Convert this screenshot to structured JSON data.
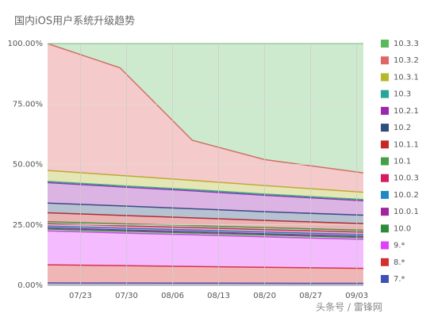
{
  "chart_data": {
    "type": "stacked_area",
    "title": "国内iOS用户系统升级趋势",
    "watermark": "头条号 / 雷锋网",
    "x": [
      199,
      210,
      221,
      232,
      247
    ],
    "xlim": [
      199,
      247
    ],
    "xticks": [
      {
        "value": 204,
        "label": "07/23"
      },
      {
        "value": 211,
        "label": "07/30"
      },
      {
        "value": 218,
        "label": "08/06"
      },
      {
        "value": 225,
        "label": "08/13"
      },
      {
        "value": 232,
        "label": "08/20"
      },
      {
        "value": 239,
        "label": "08/27"
      },
      {
        "value": 246,
        "label": "09/03"
      }
    ],
    "ylim": [
      0,
      100
    ],
    "yticks": [
      {
        "value": 0,
        "label": "0.00%"
      },
      {
        "value": 25,
        "label": "25.00%"
      },
      {
        "value": 50,
        "label": "50.00%"
      },
      {
        "value": 75,
        "label": "75.00%"
      },
      {
        "value": 100,
        "label": "100.00%"
      }
    ],
    "grid": true,
    "legend": "right",
    "series": [
      {
        "name": "7.*",
        "color": "#3f51b5",
        "values": [
          1.0,
          0.95,
          0.9,
          0.85,
          0.8
        ]
      },
      {
        "name": "8.*",
        "color": "#d32f2f",
        "values": [
          7.5,
          7.2,
          6.9,
          6.6,
          6.2
        ]
      },
      {
        "name": "9.*",
        "color": "#e040fb",
        "values": [
          14,
          13.5,
          13.1,
          12.6,
          12
        ]
      },
      {
        "name": "10.0",
        "color": "#2e8b3a",
        "values": [
          0.8,
          0.8,
          0.8,
          0.8,
          0.8
        ]
      },
      {
        "name": "10.0.1",
        "color": "#a0249c",
        "values": [
          0.5,
          0.5,
          0.5,
          0.5,
          0.5
        ]
      },
      {
        "name": "10.0.2",
        "color": "#1e88c5",
        "values": [
          0.7,
          0.7,
          0.7,
          0.7,
          0.7
        ]
      },
      {
        "name": "10.0.3",
        "color": "#d81b60",
        "values": [
          1.0,
          1.0,
          1.0,
          1.0,
          1.0
        ]
      },
      {
        "name": "10.1",
        "color": "#43a047",
        "values": [
          0.8,
          0.8,
          0.8,
          0.8,
          0.8
        ]
      },
      {
        "name": "10.1.1",
        "color": "#c62828",
        "values": [
          3.7,
          3.5,
          3.2,
          3.0,
          2.7
        ]
      },
      {
        "name": "10.2",
        "color": "#2e4f7e",
        "values": [
          4,
          3.9,
          3.8,
          3.6,
          3.5
        ]
      },
      {
        "name": "10.2.1",
        "color": "#9c27b0",
        "values": [
          8.5,
          7.9,
          7.4,
          6.8,
          6
        ]
      },
      {
        "name": "10.3",
        "color": "#26a69a",
        "values": [
          0.5,
          0.5,
          0.5,
          0.5,
          0.5
        ]
      },
      {
        "name": "10.3.1",
        "color": "#b5b82b",
        "values": [
          4.5,
          4.2,
          3.8,
          3.5,
          3
        ]
      },
      {
        "name": "10.3.2",
        "color": "#e06666",
        "values": [
          52.5,
          44.55,
          16.6,
          10.75,
          8.0
        ]
      },
      {
        "name": "10.3.3",
        "color": "#5cb85c",
        "values": [
          0,
          10,
          40,
          48,
          53.5
        ]
      }
    ]
  }
}
